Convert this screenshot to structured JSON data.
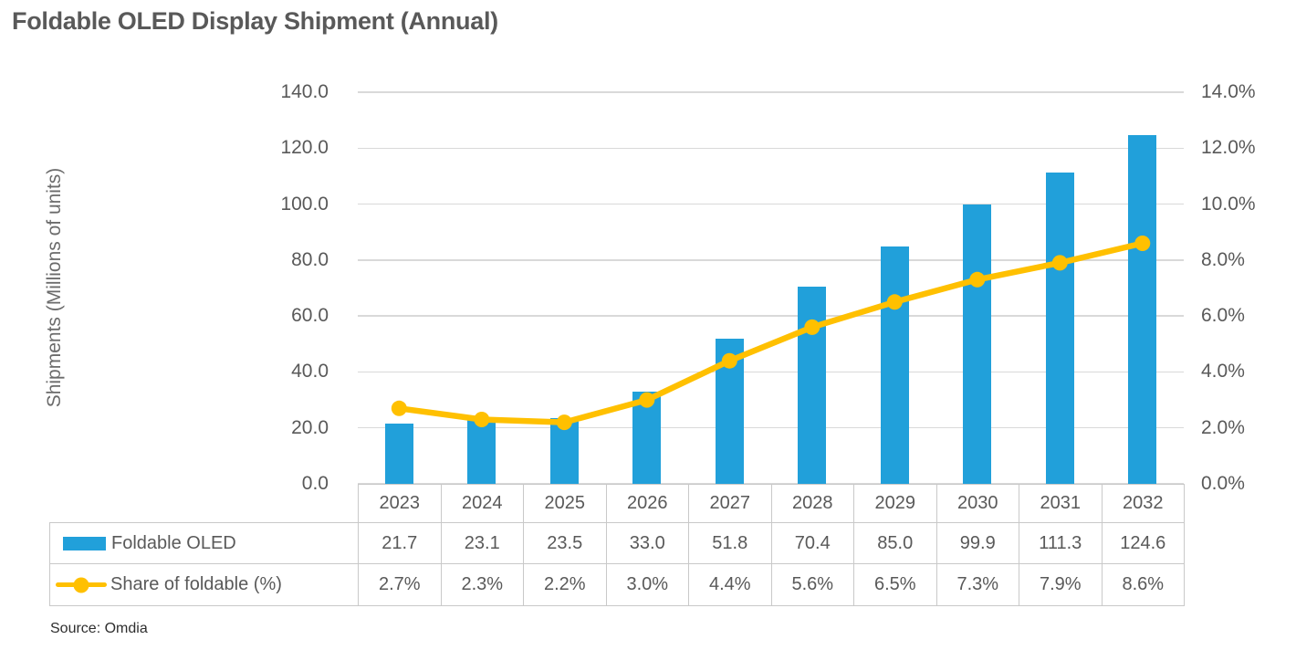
{
  "title": "Foldable OLED Display Shipment (Annual)",
  "source_note": "Source: Omdia",
  "chart_data": {
    "type": "combo",
    "title": "Foldable OLED Display Shipment (Annual)",
    "categories": [
      "2023",
      "2024",
      "2025",
      "2026",
      "2027",
      "2028",
      "2029",
      "2030",
      "2031",
      "2032"
    ],
    "series": [
      {
        "name": "Foldable OLED",
        "chart_type": "bar",
        "axis": "left",
        "color": "#21A0DA",
        "values": [
          21.7,
          23.1,
          23.5,
          33.0,
          51.8,
          70.4,
          85.0,
          99.9,
          111.3,
          124.6
        ]
      },
      {
        "name": "Share of foldable (%)",
        "chart_type": "line",
        "axis": "right",
        "color": "#FFC000",
        "values": [
          2.7,
          2.3,
          2.2,
          3.0,
          4.4,
          5.6,
          6.5,
          7.3,
          7.9,
          8.6
        ]
      }
    ],
    "left_axis": {
      "label": "Shipments (Millions of units)",
      "min": 0,
      "max": 140,
      "step": 20,
      "suffix": ""
    },
    "right_axis": {
      "label": "",
      "min": 0,
      "max": 14,
      "step": 2,
      "suffix": "%"
    },
    "grid": true,
    "gridline_color": "#D9D9D9",
    "legend_position": "data-table-left"
  }
}
